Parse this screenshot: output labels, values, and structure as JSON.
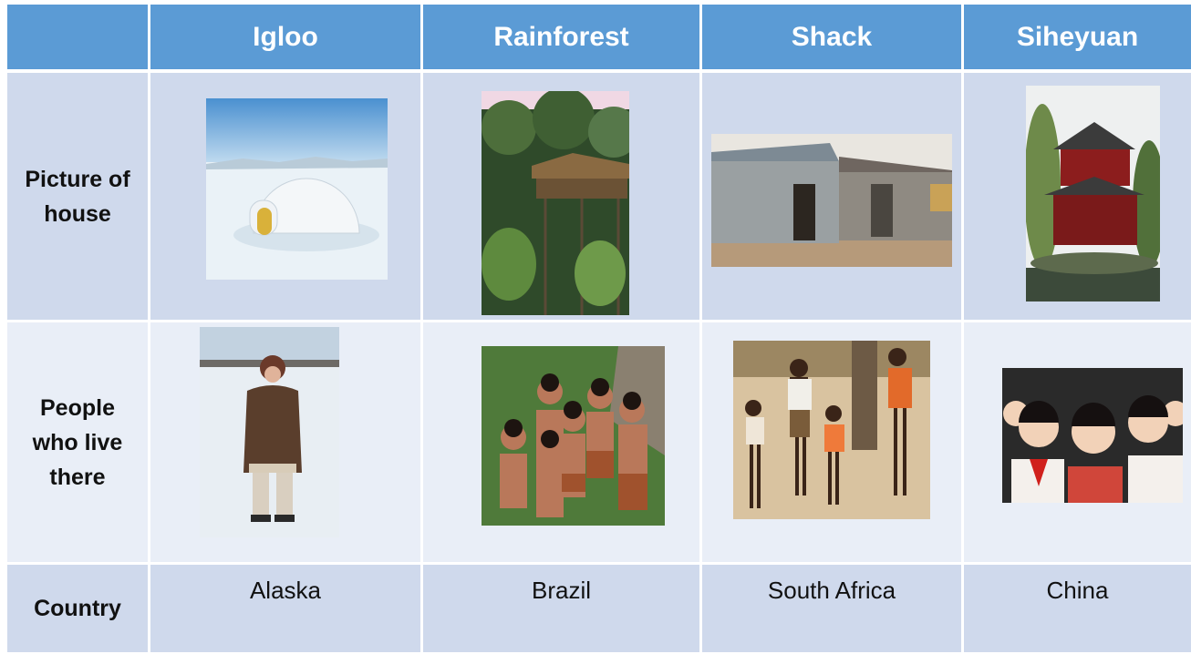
{
  "table": {
    "columns": [
      "Igloo",
      "Rainforest",
      "Shack",
      "Siheyuan"
    ],
    "rows": [
      {
        "label": "Picture of house"
      },
      {
        "label": "People who live there"
      },
      {
        "label": "Country",
        "cells": [
          "Alaska",
          "Brazil",
          "South Africa",
          "China"
        ]
      }
    ]
  }
}
